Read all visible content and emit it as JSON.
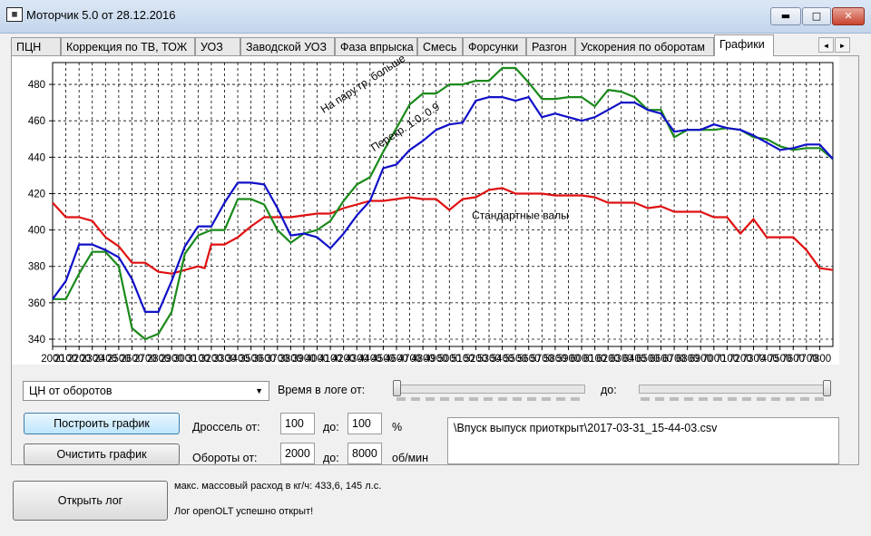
{
  "window": {
    "icon_text": "▦",
    "title": "Моторчик 5.0 от 28.12.2016",
    "min_glyph": "▬",
    "max_glyph": "□",
    "close_glyph": "✕"
  },
  "tabs": [
    {
      "label": "ПЦН"
    },
    {
      "label": "Коррекция по ТВ, ТОЖ"
    },
    {
      "label": "УОЗ"
    },
    {
      "label": "Заводской УОЗ"
    },
    {
      "label": "Фаза впрыска"
    },
    {
      "label": "Смесь"
    },
    {
      "label": "Форсунки"
    },
    {
      "label": "Разгон"
    },
    {
      "label": "Ускорения по оборотам"
    },
    {
      "label": "Графики",
      "active": true
    }
  ],
  "tab_scroll": {
    "left": "◄",
    "right": "►"
  },
  "chart_data": {
    "type": "line",
    "xlim": [
      2000,
      7900
    ],
    "ylim": [
      336,
      492
    ],
    "x_ticks": [
      "2000",
      "2100",
      "2200",
      "2300",
      "2400",
      "2500",
      "2600",
      "2700",
      "2800",
      "2900",
      "3000",
      "3100",
      "3200",
      "3300",
      "3400",
      "3500",
      "3600",
      "3700",
      "3800",
      "3900",
      "4000",
      "4100",
      "4200",
      "4300",
      "4400",
      "4500",
      "4600",
      "4700",
      "4800",
      "4900",
      "5000",
      "5100",
      "5200",
      "5300",
      "5400",
      "5500",
      "5600",
      "5700",
      "5800",
      "5900",
      "6000",
      "6100",
      "6200",
      "6300",
      "6400",
      "6500",
      "6600",
      "6700",
      "6800",
      "6900",
      "7000",
      "7100",
      "7200",
      "7300",
      "7400",
      "7500",
      "7600",
      "7700",
      "7800"
    ],
    "y_ticks": [
      "340",
      "360",
      "380",
      "400",
      "420",
      "440",
      "460",
      "480"
    ],
    "grid": true,
    "series": [
      {
        "name": "Стандартные валы",
        "color": "#e01010",
        "points": [
          [
            2000,
            415
          ],
          [
            2100,
            407
          ],
          [
            2200,
            407
          ],
          [
            2300,
            405
          ],
          [
            2400,
            396
          ],
          [
            2500,
            391
          ],
          [
            2600,
            382
          ],
          [
            2700,
            382
          ],
          [
            2800,
            377
          ],
          [
            2900,
            376
          ],
          [
            3000,
            378
          ],
          [
            3100,
            380
          ],
          [
            3150,
            379
          ],
          [
            3200,
            392
          ],
          [
            3300,
            392
          ],
          [
            3400,
            396
          ],
          [
            3500,
            402
          ],
          [
            3600,
            407
          ],
          [
            3700,
            407
          ],
          [
            3800,
            407
          ],
          [
            3900,
            408
          ],
          [
            4000,
            409
          ],
          [
            4100,
            409
          ],
          [
            4200,
            412
          ],
          [
            4300,
            414
          ],
          [
            4400,
            416
          ],
          [
            4500,
            416
          ],
          [
            4600,
            417
          ],
          [
            4700,
            418
          ],
          [
            4800,
            417
          ],
          [
            4900,
            417
          ],
          [
            5000,
            411
          ],
          [
            5100,
            417
          ],
          [
            5200,
            418
          ],
          [
            5300,
            422
          ],
          [
            5400,
            423
          ],
          [
            5500,
            420
          ],
          [
            5600,
            420
          ],
          [
            5700,
            420
          ],
          [
            5800,
            419
          ],
          [
            5900,
            419
          ],
          [
            6000,
            419
          ],
          [
            6100,
            418
          ],
          [
            6200,
            415
          ],
          [
            6300,
            415
          ],
          [
            6400,
            415
          ],
          [
            6500,
            412
          ],
          [
            6600,
            413
          ],
          [
            6700,
            410
          ],
          [
            6800,
            410
          ],
          [
            6900,
            410
          ],
          [
            7000,
            407
          ],
          [
            7100,
            407
          ],
          [
            7200,
            398
          ],
          [
            7300,
            406
          ],
          [
            7400,
            396
          ],
          [
            7500,
            396
          ],
          [
            7600,
            396
          ],
          [
            7700,
            389
          ],
          [
            7800,
            379
          ],
          [
            7900,
            378
          ]
        ]
      },
      {
        "name": "На пару гр. больше",
        "color": "#1a8a1a",
        "points": [
          [
            2000,
            362
          ],
          [
            2100,
            362
          ],
          [
            2200,
            376
          ],
          [
            2300,
            388
          ],
          [
            2400,
            388
          ],
          [
            2500,
            380
          ],
          [
            2600,
            346
          ],
          [
            2700,
            340
          ],
          [
            2800,
            343
          ],
          [
            2900,
            355
          ],
          [
            3000,
            387
          ],
          [
            3100,
            397
          ],
          [
            3200,
            400
          ],
          [
            3300,
            400
          ],
          [
            3400,
            417
          ],
          [
            3500,
            417
          ],
          [
            3600,
            414
          ],
          [
            3700,
            400
          ],
          [
            3800,
            393
          ],
          [
            3900,
            398
          ],
          [
            4000,
            400
          ],
          [
            4100,
            405
          ],
          [
            4200,
            416
          ],
          [
            4300,
            425
          ],
          [
            4400,
            429
          ],
          [
            4500,
            443
          ],
          [
            4600,
            456
          ],
          [
            4700,
            469
          ],
          [
            4800,
            475
          ],
          [
            4900,
            475
          ],
          [
            5000,
            480
          ],
          [
            5100,
            480
          ],
          [
            5200,
            482
          ],
          [
            5300,
            482
          ],
          [
            5400,
            489
          ],
          [
            5500,
            489
          ],
          [
            5600,
            481
          ],
          [
            5700,
            472
          ],
          [
            5800,
            472
          ],
          [
            5900,
            473
          ],
          [
            6000,
            473
          ],
          [
            6100,
            468
          ],
          [
            6200,
            477
          ],
          [
            6300,
            476
          ],
          [
            6400,
            473
          ],
          [
            6500,
            466
          ],
          [
            6600,
            466
          ],
          [
            6700,
            451
          ],
          [
            6800,
            455
          ],
          [
            6900,
            455
          ],
          [
            7000,
            455
          ],
          [
            7100,
            456
          ],
          [
            7200,
            455
          ],
          [
            7300,
            451
          ],
          [
            7400,
            450
          ],
          [
            7500,
            446
          ],
          [
            7600,
            444
          ],
          [
            7700,
            445
          ],
          [
            7800,
            445
          ],
          [
            7900,
            439
          ]
        ]
      },
      {
        "name": "Перекр. 1.0_0.9",
        "color": "#1010c8",
        "points": [
          [
            2000,
            362
          ],
          [
            2100,
            372
          ],
          [
            2200,
            392
          ],
          [
            2300,
            392
          ],
          [
            2400,
            389
          ],
          [
            2500,
            385
          ],
          [
            2600,
            373
          ],
          [
            2700,
            355
          ],
          [
            2800,
            355
          ],
          [
            2900,
            372
          ],
          [
            3000,
            391
          ],
          [
            3100,
            402
          ],
          [
            3200,
            402
          ],
          [
            3300,
            415
          ],
          [
            3400,
            426
          ],
          [
            3500,
            426
          ],
          [
            3600,
            425
          ],
          [
            3700,
            412
          ],
          [
            3800,
            397
          ],
          [
            3900,
            398
          ],
          [
            4000,
            396
          ],
          [
            4100,
            390
          ],
          [
            4200,
            398
          ],
          [
            4300,
            408
          ],
          [
            4400,
            416
          ],
          [
            4500,
            434
          ],
          [
            4600,
            436
          ],
          [
            4700,
            444
          ],
          [
            4800,
            449
          ],
          [
            4900,
            455
          ],
          [
            5000,
            458
          ],
          [
            5100,
            459
          ],
          [
            5200,
            471
          ],
          [
            5300,
            473
          ],
          [
            5400,
            473
          ],
          [
            5500,
            471
          ],
          [
            5600,
            473
          ],
          [
            5700,
            462
          ],
          [
            5800,
            464
          ],
          [
            5900,
            462
          ],
          [
            6000,
            460
          ],
          [
            6100,
            462
          ],
          [
            6200,
            466
          ],
          [
            6300,
            470
          ],
          [
            6400,
            470
          ],
          [
            6500,
            466
          ],
          [
            6600,
            464
          ],
          [
            6700,
            454
          ],
          [
            6800,
            455
          ],
          [
            6900,
            455
          ],
          [
            7000,
            458
          ],
          [
            7100,
            456
          ],
          [
            7200,
            455
          ],
          [
            7300,
            452
          ],
          [
            7400,
            448
          ],
          [
            7500,
            444
          ],
          [
            7600,
            445
          ],
          [
            7700,
            447
          ],
          [
            7800,
            447
          ],
          [
            7900,
            439
          ]
        ]
      }
    ]
  },
  "controls": {
    "combo_value": "ЦН от оборотов",
    "time_label": "Время в логе от:",
    "to_label": "до:",
    "build_btn": "Построить график",
    "clear_btn": "Очистить график",
    "throttle_label": "Дроссель от:",
    "throttle_from": "100",
    "throttle_to_label": "до:",
    "throttle_to": "100",
    "throttle_unit": "%",
    "rpm_label": "Обороты от:",
    "rpm_from": "2000",
    "rpm_to_label": "до:",
    "rpm_to": "8000",
    "rpm_unit": "об/мин",
    "file_path": "\\Впуск выпуск приоткрыт\\2017-03-31_15-44-03.csv",
    "slider_from": 0.0,
    "slider_to": 1.0
  },
  "footer": {
    "open_btn": "Открыть лог",
    "info1": "макс. массовый расход в кг/ч: 433,6, 145 л.с.",
    "info2": "Лог openOLT успешно открыт!"
  }
}
